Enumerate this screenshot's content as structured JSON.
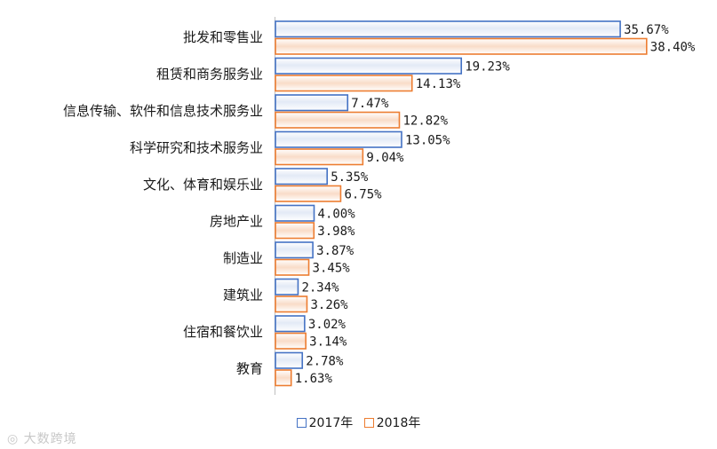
{
  "chart_data": {
    "type": "bar",
    "orientation": "horizontal",
    "categories": [
      "批发和零售业",
      "租赁和商务服务业",
      "信息传输、软件和信息技术服务业",
      "科学研究和技术服务业",
      "文化、体育和娱乐业",
      "房地产业",
      "制造业",
      "建筑业",
      "住宿和餐饮业",
      "教育"
    ],
    "series": [
      {
        "name": "2017年",
        "color": "#4472c4",
        "values": [
          35.67,
          19.23,
          7.47,
          13.05,
          5.35,
          4.0,
          3.87,
          2.34,
          3.02,
          2.78
        ],
        "labels": [
          "35.67%",
          "19.23%",
          "7.47%",
          "13.05%",
          "5.35%",
          "4.00%",
          "3.87%",
          "2.34%",
          "3.02%",
          "2.78%"
        ]
      },
      {
        "name": "2018年",
        "color": "#ed7d31",
        "values": [
          38.4,
          14.13,
          12.82,
          9.04,
          6.75,
          3.98,
          3.45,
          3.26,
          3.14,
          1.63
        ],
        "labels": [
          "38.40%",
          "14.13%",
          "12.82%",
          "9.04%",
          "6.75%",
          "3.98%",
          "3.45%",
          "3.26%",
          "3.14%",
          "1.63%"
        ]
      }
    ],
    "xlim": [
      0,
      40
    ],
    "grid": false,
    "legend_position": "bottom"
  },
  "watermark": "大数跨境"
}
